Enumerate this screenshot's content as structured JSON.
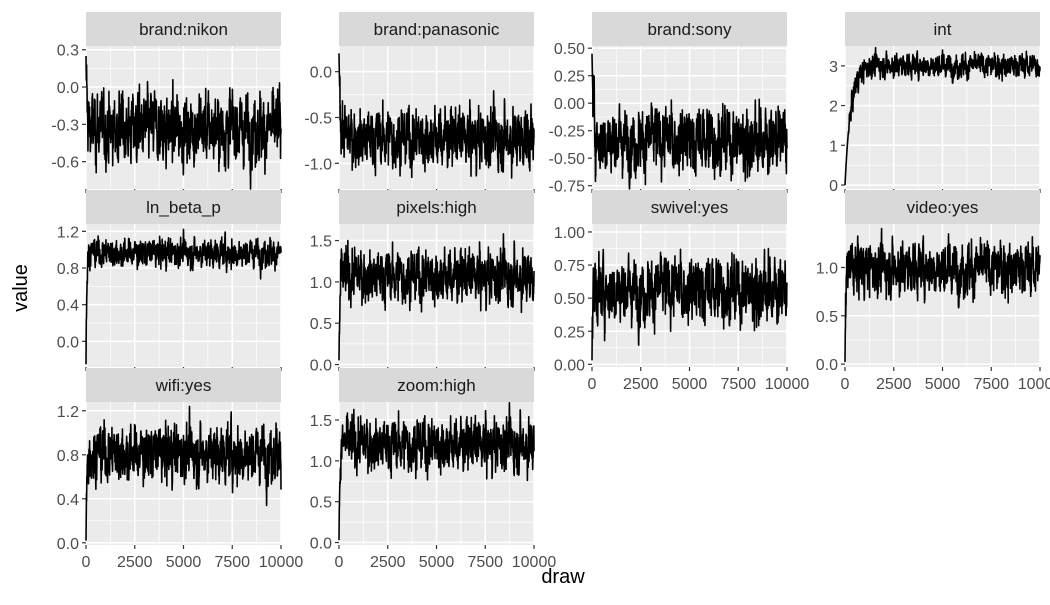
{
  "chart_data": {
    "type": "line",
    "xlabel": "draw",
    "ylabel": "value",
    "xlim": [
      0,
      10000
    ],
    "x_ticks": [
      "0",
      "2500",
      "5000",
      "7500",
      "10000"
    ],
    "x_tick_values": [
      0,
      2500,
      5000,
      7500,
      10000
    ],
    "grid": true,
    "legend": "none",
    "series_color": "#000000",
    "panel_bg": "#ebebeb",
    "strip_bg": "#d9d9d9",
    "panels": [
      {
        "name": "brand:nikon",
        "ylim": [
          -0.82,
          0.33
        ],
        "y_ticks": [
          0.3,
          0.0,
          -0.3,
          -0.6
        ],
        "y_labels": [
          "0.3",
          "0.0",
          "-0.3",
          "-0.6"
        ],
        "start": 0.25,
        "mean": -0.33,
        "noise_sd": 0.11,
        "burn_in": 150
      },
      {
        "name": "brand:panasonic",
        "ylim": [
          -1.28,
          0.28
        ],
        "y_ticks": [
          0.0,
          -0.5,
          -1.0
        ],
        "y_labels": [
          "0.0",
          "-0.5",
          "-1.0"
        ],
        "start": 0.2,
        "mean": -0.72,
        "noise_sd": 0.13,
        "burn_in": 250
      },
      {
        "name": "brand:sony",
        "ylim": [
          -0.78,
          0.52
        ],
        "y_ticks": [
          0.5,
          0.25,
          0.0,
          -0.25,
          -0.5,
          -0.75
        ],
        "y_labels": [
          "0.50",
          "0.25",
          "0.00",
          "-0.25",
          "-0.50",
          "-0.75"
        ],
        "start": 0.45,
        "mean": -0.33,
        "noise_sd": 0.12,
        "burn_in": 300
      },
      {
        "name": "int",
        "ylim": [
          -0.1,
          3.5
        ],
        "y_ticks": [
          0,
          1,
          2,
          3
        ],
        "y_labels": [
          "0",
          "1",
          "2",
          "3"
        ],
        "start": 0.0,
        "mean": 3.02,
        "noise_sd": 0.12,
        "burn_in": 1200
      },
      {
        "name": "ln_beta_p",
        "ylim": [
          -0.28,
          1.28
        ],
        "y_ticks": [
          1.2,
          0.8,
          0.4,
          0.0
        ],
        "y_labels": [
          "1.2",
          "0.8",
          "0.4",
          "0.0"
        ],
        "start": -0.25,
        "mean": 0.97,
        "noise_sd": 0.06,
        "burn_in": 120
      },
      {
        "name": "pixels:high",
        "ylim": [
          -0.03,
          1.7
        ],
        "y_ticks": [
          1.5,
          1.0,
          0.5,
          0.0
        ],
        "y_labels": [
          "1.5",
          "1.0",
          "0.5",
          "0.0"
        ],
        "start": 0.05,
        "mean": 1.07,
        "noise_sd": 0.13,
        "burn_in": 150
      },
      {
        "name": "swivel:yes",
        "ylim": [
          -0.02,
          1.06
        ],
        "y_ticks": [
          1.0,
          0.75,
          0.5,
          0.25,
          0.0
        ],
        "y_labels": [
          "1.00",
          "0.75",
          "0.50",
          "0.25",
          "0.00"
        ],
        "start": 0.03,
        "mean": 0.57,
        "noise_sd": 0.1,
        "burn_in": 100
      },
      {
        "name": "video:yes",
        "ylim": [
          -0.03,
          1.45
        ],
        "y_ticks": [
          1.0,
          0.5,
          0.0
        ],
        "y_labels": [
          "1.0",
          "0.5",
          "0.0"
        ],
        "start": 0.02,
        "mean": 1.0,
        "noise_sd": 0.11,
        "burn_in": 150
      },
      {
        "name": "wifi:yes",
        "ylim": [
          -0.02,
          1.28
        ],
        "y_ticks": [
          1.2,
          0.8,
          0.4,
          0.0
        ],
        "y_labels": [
          "1.2",
          "0.8",
          "0.4",
          "0.0"
        ],
        "start": 0.02,
        "mean": 0.82,
        "noise_sd": 0.1,
        "burn_in": 150
      },
      {
        "name": "zoom:high",
        "ylim": [
          -0.03,
          1.72
        ],
        "y_ticks": [
          1.5,
          1.0,
          0.5,
          0.0
        ],
        "y_labels": [
          "1.5",
          "1.0",
          "0.5",
          "0.0"
        ],
        "start": 0.03,
        "mean": 1.2,
        "noise_sd": 0.13,
        "burn_in": 150
      }
    ]
  }
}
